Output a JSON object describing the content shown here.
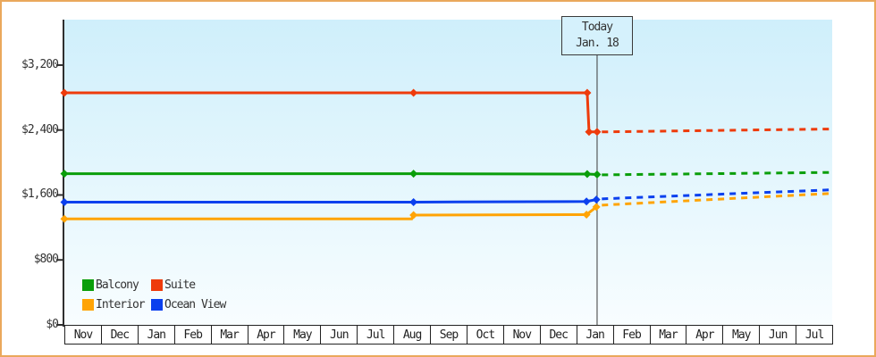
{
  "chart_data": {
    "type": "line",
    "title": "",
    "currency": "USD",
    "x_axis": {
      "categories": [
        "Nov",
        "Dec",
        "Jan",
        "Feb",
        "Mar",
        "Apr",
        "May",
        "Jun",
        "Jul",
        "Aug",
        "Sep",
        "Oct",
        "Nov",
        "Dec",
        "Jan",
        "Feb",
        "Mar",
        "Apr",
        "May",
        "Jun",
        "Jul"
      ]
    },
    "y_axis": {
      "max": 3760,
      "ticks": [
        {
          "label": "$0",
          "value": 0
        },
        {
          "label": "$800",
          "value": 800
        },
        {
          "label": "$1,600",
          "value": 1600
        },
        {
          "label": "$2,400",
          "value": 2400
        },
        {
          "label": "$3,200",
          "value": 3200
        }
      ]
    },
    "today": {
      "line1": "Today",
      "line2": "Jan. 18",
      "month_index": 14.57
    },
    "series": [
      {
        "name": "Balcony",
        "color": "#0a9e0a",
        "history": [
          [
            0,
            1862,
            1
          ],
          [
            9.55,
            1862,
            1
          ],
          [
            14.3,
            1858,
            1
          ],
          [
            14.57,
            1852,
            1
          ]
        ],
        "forecast": [
          [
            14.7,
            1848
          ],
          [
            21,
            1878
          ]
        ]
      },
      {
        "name": "Interior",
        "color": "#ffa405",
        "history": [
          [
            0,
            1306,
            1
          ],
          [
            9.5,
            1306,
            0
          ],
          [
            9.55,
            1352,
            1
          ],
          [
            14.28,
            1358,
            1
          ],
          [
            14.55,
            1452,
            1
          ]
        ],
        "forecast": [
          [
            14.7,
            1475
          ],
          [
            21,
            1620
          ]
        ]
      },
      {
        "name": "Ocean View",
        "color": "#0b40ee",
        "history": [
          [
            0,
            1512,
            1
          ],
          [
            9.55,
            1512,
            1
          ],
          [
            14.28,
            1520,
            1
          ],
          [
            14.55,
            1543,
            1
          ]
        ],
        "forecast": [
          [
            14.7,
            1552
          ],
          [
            21,
            1664
          ]
        ]
      },
      {
        "name": "Suite",
        "color": "#ee3b0b",
        "history": [
          [
            0,
            2858,
            1
          ],
          [
            9.55,
            2858,
            1
          ],
          [
            14.3,
            2858,
            1
          ],
          [
            14.35,
            2377,
            1
          ],
          [
            14.57,
            2377,
            1
          ]
        ],
        "forecast": [
          [
            14.7,
            2377
          ],
          [
            21,
            2413
          ]
        ]
      }
    ],
    "legend": [
      {
        "label": "Balcony",
        "color": "#0a9e0a"
      },
      {
        "label": "Suite",
        "color": "#ee3b0b"
      },
      {
        "label": "Interior",
        "color": "#ffa405"
      },
      {
        "label": "Ocean View",
        "color": "#0b40ee"
      }
    ],
    "style": {
      "frame_border": "#eaa85c",
      "plot_bg_top": "#cfeffb",
      "plot_bg_bottom": "#f8fdff",
      "axis_color": "#2f2f2f",
      "text_color": "#333333",
      "grid": "off",
      "legend_position": "bottom-left"
    }
  }
}
